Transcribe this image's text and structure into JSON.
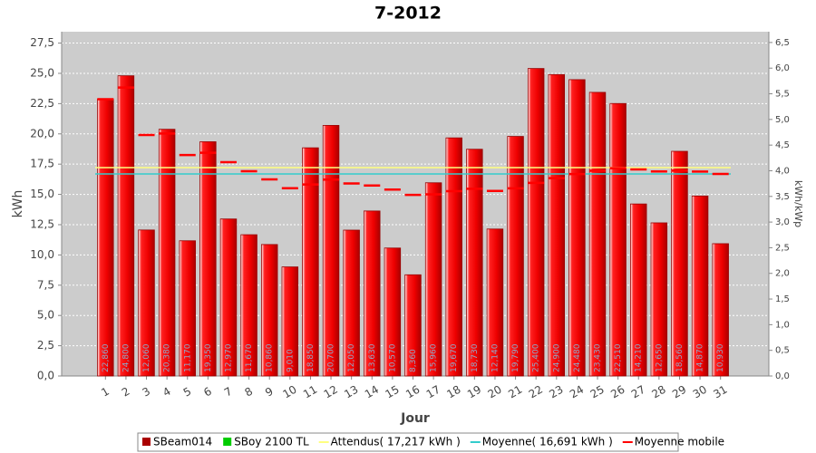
{
  "chart_data": {
    "type": "bar",
    "title": "7-2012",
    "xlabel": "Jour",
    "ylabel": "kWh",
    "y2label": "kWh/kWp",
    "categories": [
      "1",
      "2",
      "3",
      "4",
      "5",
      "6",
      "7",
      "8",
      "9",
      "10",
      "11",
      "12",
      "13",
      "14",
      "15",
      "16",
      "17",
      "18",
      "19",
      "20",
      "21",
      "22",
      "23",
      "24",
      "25",
      "26",
      "27",
      "28",
      "29",
      "30",
      "31"
    ],
    "series": [
      {
        "name": "SBeam014",
        "color": "#ee0000",
        "legend_color": "#aa0000",
        "draw": "bar",
        "values": [
          22.86,
          24.8,
          12.06,
          20.38,
          11.17,
          19.35,
          12.97,
          11.67,
          10.86,
          9.01,
          18.85,
          20.7,
          12.05,
          13.63,
          10.57,
          8.36,
          15.96,
          19.67,
          18.73,
          12.14,
          19.79,
          25.4,
          24.9,
          24.48,
          23.43,
          22.51,
          14.21,
          12.65,
          18.56,
          14.87,
          10.93
        ],
        "value_labels": [
          "22,860",
          "24,800",
          "12,060",
          "20,380",
          "11,170",
          "19,350",
          "12,970",
          "11,670",
          "10,860",
          "9,010",
          "18,850",
          "20,700",
          "12,050",
          "13,630",
          "10,570",
          "8,360",
          "15,960",
          "19,670",
          "18,730",
          "12,140",
          "19,790",
          "25,400",
          "24,900",
          "24,480",
          "23,430",
          "22,510",
          "14,210",
          "12,650",
          "18,560",
          "14,870",
          "10,930"
        ]
      },
      {
        "name": "SBoy 2100 TL",
        "color": "#00cc00",
        "draw": "bar"
      },
      {
        "name": "Attendus( 17,217 kWh )",
        "color": "#ffff80",
        "draw": "hline",
        "value": 17.217
      },
      {
        "name": "Moyenne( 16,691 kWh )",
        "color": "#33cccc",
        "draw": "hline",
        "value": 16.691
      },
      {
        "name": "Moyenne mobile",
        "color": "#ff0000",
        "draw": "dash",
        "values": [
          22.86,
          23.83,
          19.91,
          20.03,
          18.25,
          18.44,
          17.66,
          16.91,
          16.24,
          15.51,
          15.82,
          16.22,
          15.9,
          15.74,
          15.4,
          14.96,
          15.01,
          15.27,
          15.46,
          15.29,
          15.5,
          15.95,
          16.34,
          16.68,
          16.95,
          17.17,
          17.06,
          16.9,
          16.96,
          16.89,
          16.69
        ]
      }
    ],
    "ylim": [
      0,
      28.44
    ],
    "yticks": [
      {
        "value": 0,
        "label": "0,0"
      },
      {
        "value": 2.5,
        "label": "2,5"
      },
      {
        "value": 5,
        "label": "5,0"
      },
      {
        "value": 7.5,
        "label": "7,5"
      },
      {
        "value": 10,
        "label": "10,0"
      },
      {
        "value": 12.5,
        "label": "12,5"
      },
      {
        "value": 15,
        "label": "15,0"
      },
      {
        "value": 17.5,
        "label": "17,5"
      },
      {
        "value": 20,
        "label": "20,0"
      },
      {
        "value": 22.5,
        "label": "22,5"
      },
      {
        "value": 25,
        "label": "25,0"
      },
      {
        "value": 27.5,
        "label": "27,5"
      }
    ],
    "y2lim": [
      0,
      6.71
    ],
    "y2ticks": [
      {
        "value": 0,
        "label": "0,0"
      },
      {
        "value": 0.5,
        "label": "0,5"
      },
      {
        "value": 1,
        "label": "1,0"
      },
      {
        "value": 1.5,
        "label": "1,5"
      },
      {
        "value": 2,
        "label": "2,0"
      },
      {
        "value": 2.5,
        "label": "2,5"
      },
      {
        "value": 3,
        "label": "3,0"
      },
      {
        "value": 3.5,
        "label": "3,5"
      },
      {
        "value": 4,
        "label": "4,0"
      },
      {
        "value": 4.5,
        "label": "4,5"
      },
      {
        "value": 5,
        "label": "5,0"
      },
      {
        "value": 5.5,
        "label": "5,5"
      },
      {
        "value": 6,
        "label": "6,0"
      },
      {
        "value": 6.5,
        "label": "6,5"
      }
    ],
    "grid": true,
    "legend": "bottom"
  }
}
